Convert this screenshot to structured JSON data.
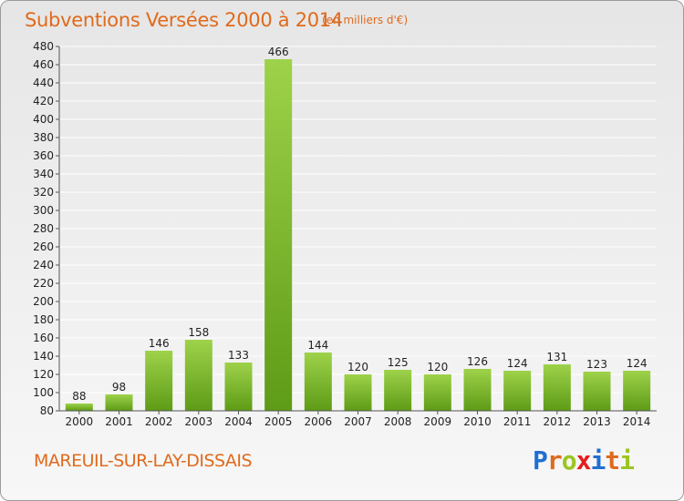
{
  "header": {
    "title": "Subventions Versées 2000 à 2014",
    "unit": "(en milliers d'€)"
  },
  "footer": {
    "commune": "MAREUIL-SUR-LAY-DISSAIS",
    "logo": [
      "P",
      "r",
      "o",
      "x",
      "i",
      "t",
      "i"
    ]
  },
  "colors": {
    "title": "#e06a1c",
    "bar_top": "#9ed24a",
    "bar_bottom": "#5e9b16",
    "grid": "#ffffff",
    "logo": [
      "#1f6fd1",
      "#e06a1c",
      "#9bc520",
      "#e51d1d",
      "#1f6fd1",
      "#e06a1c",
      "#9bc520"
    ]
  },
  "chart_data": {
    "type": "bar",
    "title": "Subventions Versées 2000 à 2014",
    "subtitle": "(en milliers d'€)",
    "xlabel": "",
    "ylabel": "",
    "categories": [
      "2000",
      "2001",
      "2002",
      "2003",
      "2004",
      "2005",
      "2006",
      "2007",
      "2008",
      "2009",
      "2010",
      "2011",
      "2012",
      "2013",
      "2014"
    ],
    "values": [
      88,
      98,
      146,
      158,
      133,
      466,
      144,
      120,
      125,
      120,
      126,
      124,
      131,
      123,
      124
    ],
    "ylim": [
      80,
      480
    ],
    "yticks": [
      80,
      100,
      120,
      140,
      160,
      180,
      200,
      220,
      240,
      260,
      280,
      300,
      320,
      340,
      360,
      380,
      400,
      420,
      440,
      460,
      480
    ],
    "grid": true,
    "legend": "none"
  }
}
